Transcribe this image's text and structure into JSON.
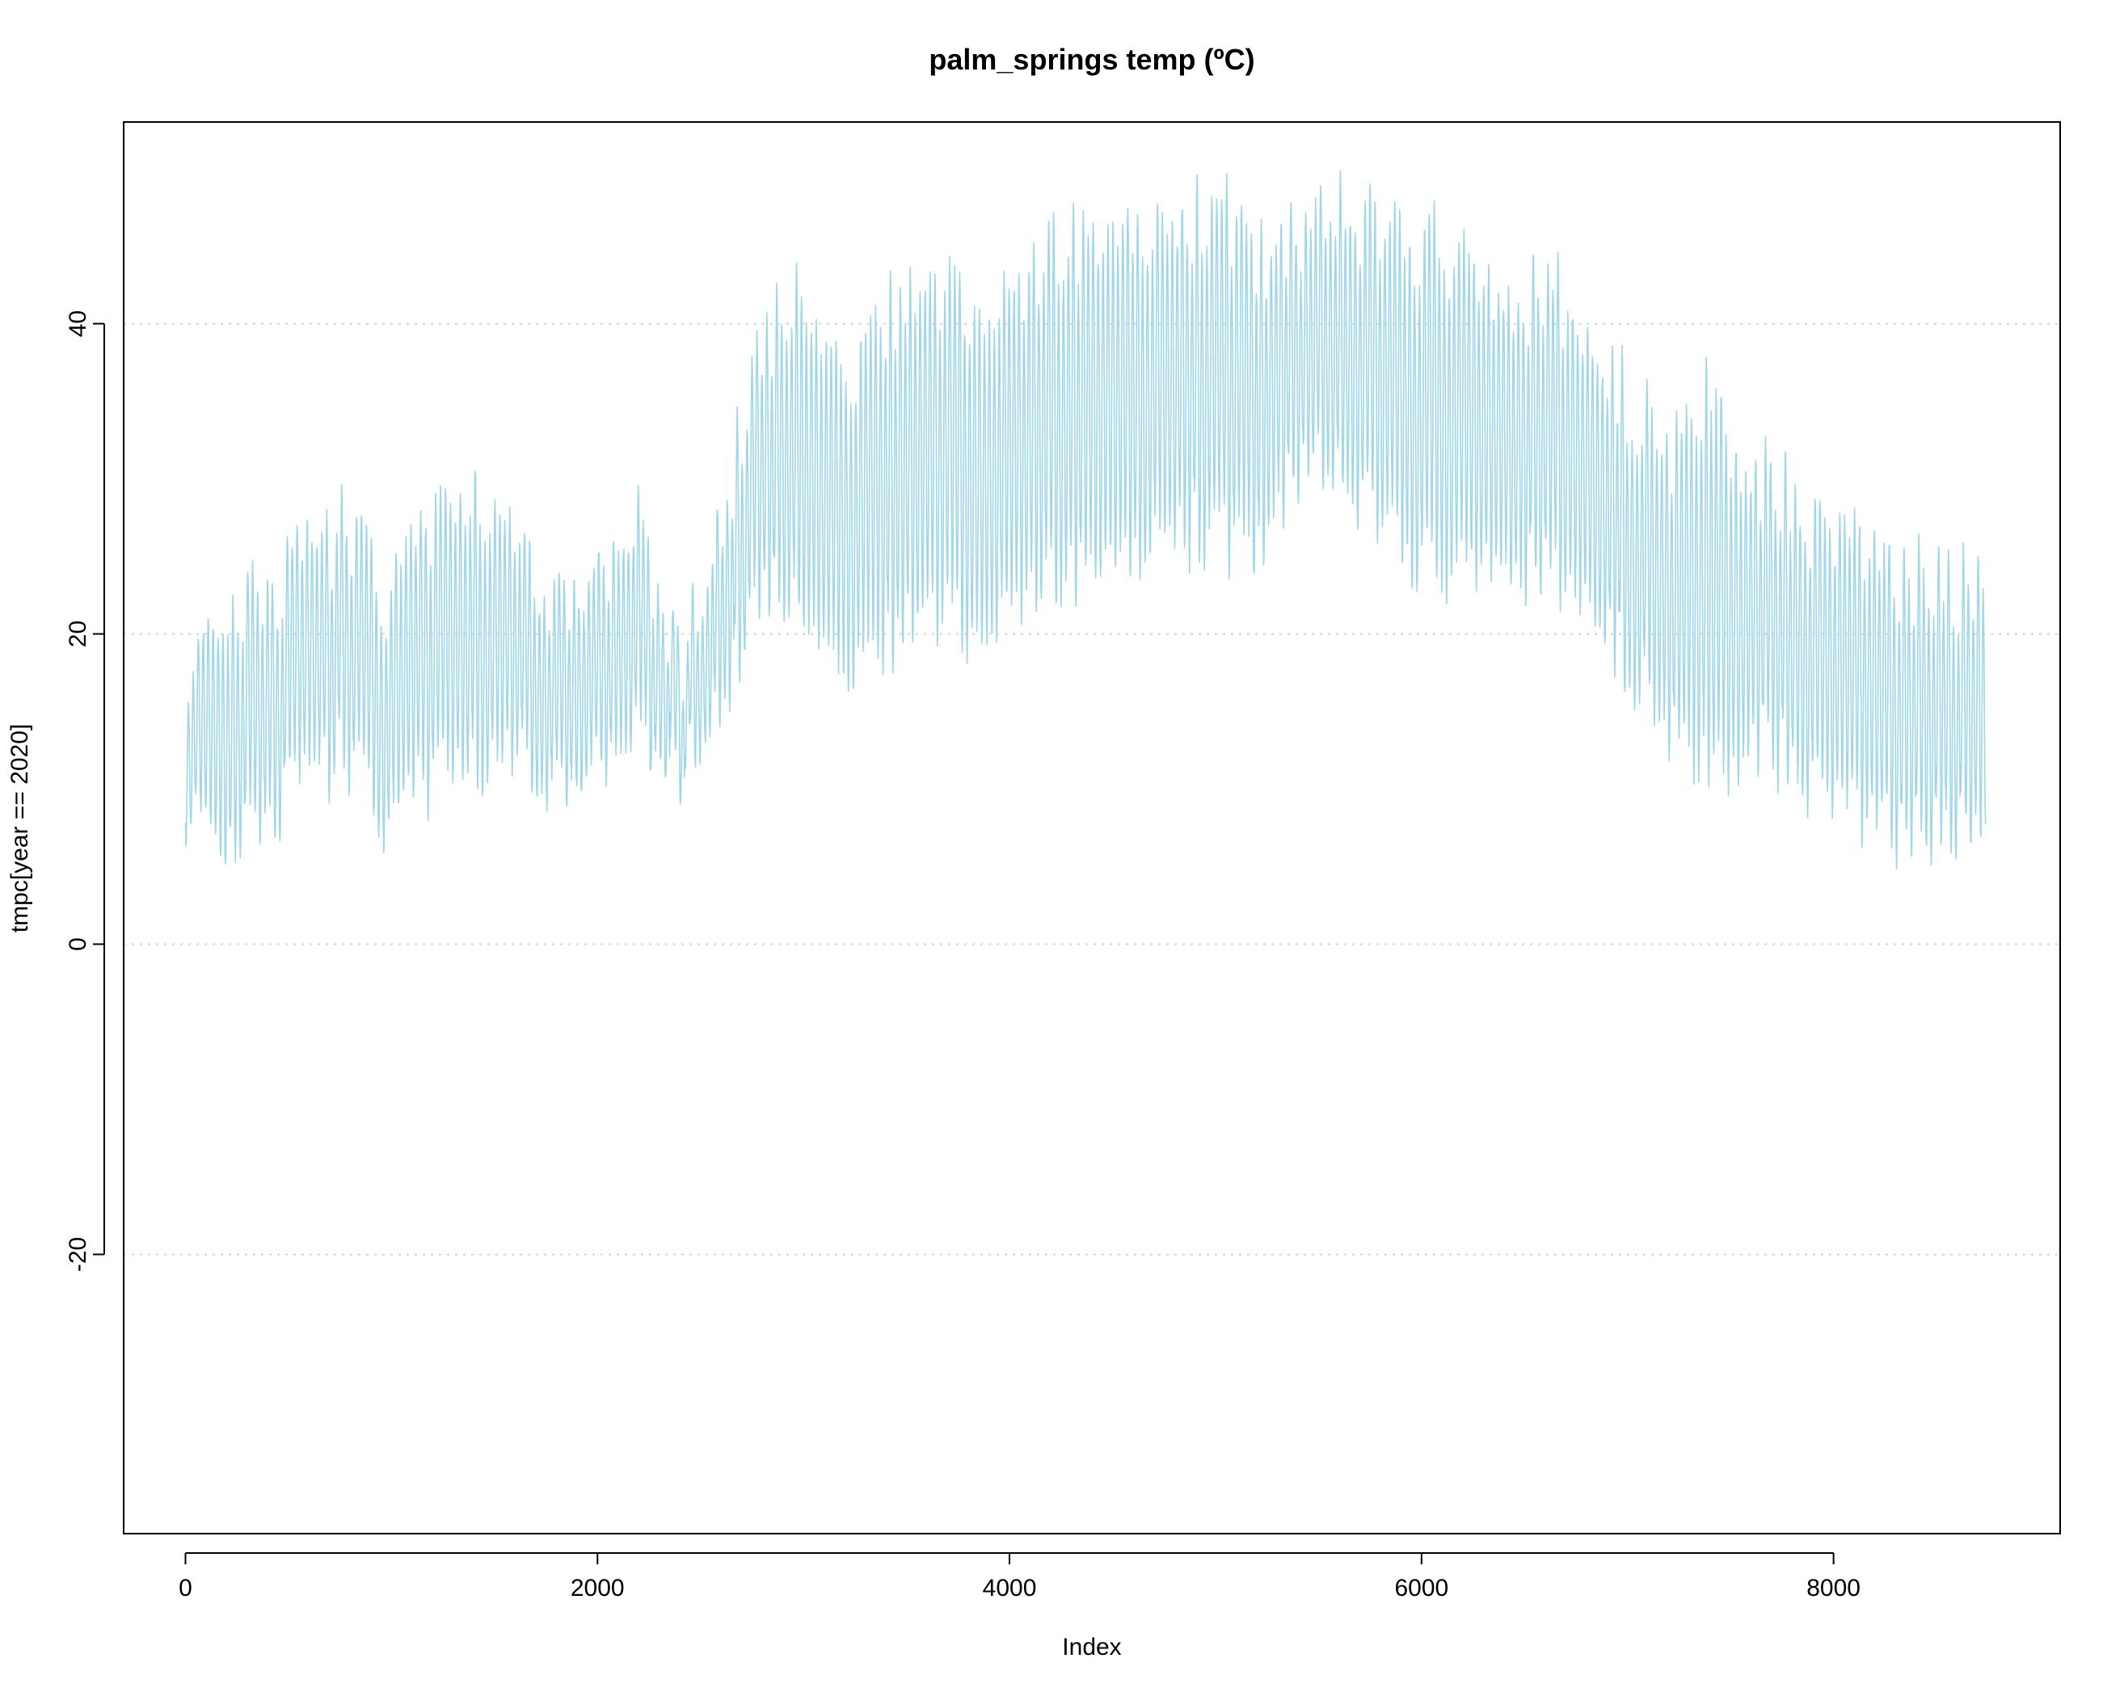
{
  "chart_data": {
    "type": "line",
    "title": "palm_springs temp (ºC)",
    "xlabel": "Index",
    "ylabel": "tmpc[year == 2020]",
    "xlim": [
      -300,
      9100
    ],
    "ylim": [
      -38,
      53
    ],
    "x_ticks": [
      0,
      2000,
      4000,
      6000,
      8000
    ],
    "x_tick_labels": [
      "0",
      "2000",
      "4000",
      "6000",
      "8000"
    ],
    "y_ticks": [
      -20,
      0,
      20,
      40
    ],
    "y_tick_labels": [
      "-20",
      "0",
      "20",
      "40"
    ],
    "grid": "horizontal dotted at y ticks",
    "legend": "none",
    "series_color": "#9fd7e6",
    "grid_color": "#d3d3d3",
    "n_points": 8740,
    "envelope": {
      "description": "approximate daily max/min envelope of the hourly series",
      "x": [
        0,
        200,
        400,
        600,
        800,
        1000,
        1200,
        1400,
        1600,
        1800,
        2000,
        2200,
        2400,
        2600,
        2800,
        3000,
        3200,
        3400,
        3600,
        3800,
        4000,
        4200,
        4400,
        4600,
        4800,
        5000,
        5200,
        5400,
        5600,
        5800,
        6000,
        6200,
        6400,
        6600,
        6800,
        7000,
        7200,
        7400,
        7600,
        7800,
        8000,
        8200,
        8400,
        8600,
        8740
      ],
      "max": [
        18,
        22,
        22,
        25,
        27,
        22,
        27,
        28,
        27,
        22,
        23,
        27,
        18,
        27,
        39,
        41,
        37,
        40,
        43,
        41,
        42,
        44,
        45,
        47,
        45,
        48,
        44,
        46,
        47,
        47,
        45,
        44,
        42,
        42,
        40,
        35,
        32,
        35,
        30,
        29,
        26,
        25,
        23,
        23,
        22
      ],
      "min": [
        9,
        7,
        8,
        11,
        12,
        7,
        11,
        11,
        13,
        10,
        11,
        14,
        11,
        16,
        23,
        21,
        18,
        19,
        22,
        20,
        22,
        23,
        24,
        26,
        26,
        27,
        25,
        31,
        30,
        28,
        24,
        24,
        25,
        24,
        23,
        18,
        14,
        11,
        13,
        12,
        9,
        8,
        7,
        8,
        6
      ]
    }
  }
}
